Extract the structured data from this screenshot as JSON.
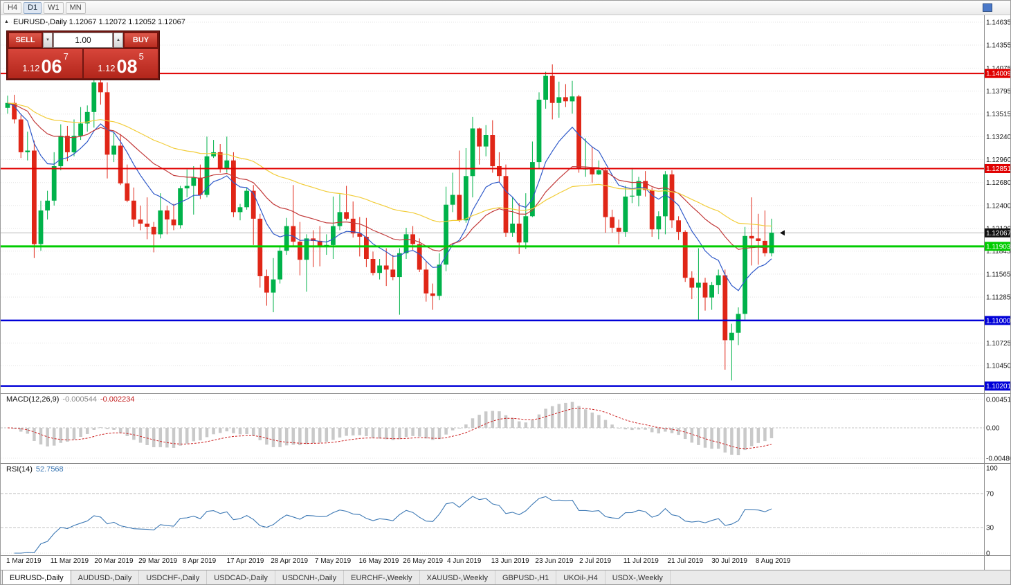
{
  "toolbar": {
    "timeframes": [
      {
        "label": "H4",
        "active": false
      },
      {
        "label": "D1",
        "active": true
      },
      {
        "label": "W1",
        "active": false
      },
      {
        "label": "MN",
        "active": false
      }
    ]
  },
  "chart": {
    "title": "EURUSD-,Daily  1.12067 1.12072 1.12052 1.12067"
  },
  "icons": {
    "collapse": "▲",
    "volume_down": "▼",
    "volume_up": "▲"
  },
  "trade_panel": {
    "sell_label": "SELL",
    "buy_label": "BUY",
    "volume": "1.00",
    "sell_price": {
      "base": "1.12",
      "big": "06",
      "sup": "7"
    },
    "buy_price": {
      "base": "1.12",
      "big": "08",
      "sup": "5"
    }
  },
  "indicators": {
    "macd": {
      "name": "MACD(12,26,9)",
      "value_main": "-0.000544",
      "value_signal": "-0.002234",
      "axis": [
        {
          "v": 0.004517,
          "label": "0.004517"
        },
        {
          "v": 0,
          "label": "0.00"
        },
        {
          "v": -0.004806,
          "label": "-0.004806"
        }
      ]
    },
    "rsi": {
      "name": "RSI(14)",
      "value": "52.7568",
      "axis": [
        {
          "v": 100,
          "label": "100"
        },
        {
          "v": 70,
          "label": "70"
        },
        {
          "v": 30,
          "label": "30"
        },
        {
          "v": 0,
          "label": "0"
        }
      ]
    }
  },
  "tabs": [
    {
      "label": "EURUSD-,Daily",
      "active": true
    },
    {
      "label": "AUDUSD-,Daily",
      "active": false
    },
    {
      "label": "USDCHF-,Daily",
      "active": false
    },
    {
      "label": "USDCAD-,Daily",
      "active": false
    },
    {
      "label": "USDCNH-,Daily",
      "active": false
    },
    {
      "label": "EURCHF-,Weekly",
      "active": false
    },
    {
      "label": "XAUUSD-,Weekly",
      "active": false
    },
    {
      "label": "GBPUSD-,H1",
      "active": false
    },
    {
      "label": "UKOil-,H4",
      "active": false
    },
    {
      "label": "USDX-,Weekly",
      "active": false
    }
  ],
  "chart_data": {
    "type": "candlestick",
    "symbol": "EURUSD-",
    "period": "Daily",
    "ylim": [
      1.10122,
      1.1466
    ],
    "price_ticks": [
      1.14635,
      1.14355,
      1.14075,
      1.13795,
      1.13515,
      1.1324,
      1.1296,
      1.1268,
      1.124,
      1.1212,
      1.11845,
      1.11565,
      1.11285,
      1.10725,
      1.1045
    ],
    "hlines": [
      {
        "price": 1.14009,
        "label": "1.14009",
        "color": "#e00000",
        "width": 2
      },
      {
        "price": 1.12851,
        "label": "1.12851",
        "color": "#e00000",
        "width": 2
      },
      {
        "price": 1.11903,
        "label": "1.11903",
        "color": "#00cc00",
        "width": 3
      },
      {
        "price": 1.11,
        "label": "1.11000",
        "color": "#0000d8",
        "width": 2.5
      },
      {
        "price": 1.10201,
        "label": "1.10201",
        "color": "#0000d8",
        "width": 2.5
      }
    ],
    "current_price": {
      "value": 1.12067,
      "label": "1.12067"
    },
    "date_labels": [
      "1 Mar 2019",
      "11 Mar 2019",
      "20 Mar 2019",
      "29 Mar 2019",
      "8 Apr 2019",
      "17 Apr 2019",
      "28 Apr 2019",
      "7 May 2019",
      "16 May 2019",
      "26 May 2019",
      "4 Jun 2019",
      "13 Jun 2019",
      "23 Jun 2019",
      "2 Jul 2019",
      "11 Jul 2019",
      "21 Jul 2019",
      "30 Jul 2019",
      "8 Aug 2019"
    ],
    "moving_averages": [
      {
        "period": 10,
        "color": "#2e59c9"
      },
      {
        "period": 25,
        "color": "#c23a3a"
      },
      {
        "period": 55,
        "color": "#f2cd3a"
      }
    ],
    "colors": {
      "up": "#00b24a",
      "down": "#e02617",
      "macd_hist": "#c9c9c9",
      "macd_signal": "#cc2020",
      "rsi_line": "#3c78b4",
      "grid": "#e4e4e4",
      "axis_text": "#1a1a1a",
      "current_label_bg": "#111111"
    },
    "candles": [
      [
        1.1359,
        1.1374,
        1.1352,
        1.1365
      ],
      [
        1.1365,
        1.1375,
        1.134,
        1.1345
      ],
      [
        1.1345,
        1.135,
        1.1298,
        1.1305
      ],
      [
        1.1305,
        1.133,
        1.1295,
        1.1307
      ],
      [
        1.1307,
        1.1319,
        1.1176,
        1.1193
      ],
      [
        1.1193,
        1.1246,
        1.1185,
        1.1234
      ],
      [
        1.1234,
        1.1258,
        1.1223,
        1.1246
      ],
      [
        1.1246,
        1.1305,
        1.124,
        1.1288
      ],
      [
        1.1288,
        1.1339,
        1.1283,
        1.1325
      ],
      [
        1.1325,
        1.1337,
        1.1294,
        1.1305
      ],
      [
        1.1305,
        1.1345,
        1.13,
        1.1325
      ],
      [
        1.1325,
        1.136,
        1.132,
        1.134
      ],
      [
        1.134,
        1.1362,
        1.133,
        1.1354
      ],
      [
        1.1354,
        1.1402,
        1.1335,
        1.139
      ],
      [
        1.139,
        1.1398,
        1.1363,
        1.1378
      ],
      [
        1.1378,
        1.139,
        1.1273,
        1.1302
      ],
      [
        1.1302,
        1.133,
        1.1293,
        1.1313
      ],
      [
        1.1313,
        1.1327,
        1.1265,
        1.1267
      ],
      [
        1.1267,
        1.129,
        1.1244,
        1.1246
      ],
      [
        1.1246,
        1.1262,
        1.1214,
        1.1223
      ],
      [
        1.1223,
        1.124,
        1.121,
        1.1218
      ],
      [
        1.1218,
        1.125,
        1.1199,
        1.1214
      ],
      [
        1.1214,
        1.122,
        1.1183,
        1.1205
      ],
      [
        1.1205,
        1.1255,
        1.12,
        1.1234
      ],
      [
        1.1234,
        1.124,
        1.1205,
        1.1223
      ],
      [
        1.1223,
        1.1242,
        1.121,
        1.1216
      ],
      [
        1.1216,
        1.1264,
        1.1212,
        1.1261
      ],
      [
        1.1261,
        1.1284,
        1.125,
        1.1264
      ],
      [
        1.1264,
        1.1288,
        1.1229,
        1.1274
      ],
      [
        1.1274,
        1.129,
        1.1248,
        1.1253
      ],
      [
        1.1253,
        1.1324,
        1.125,
        1.13
      ],
      [
        1.13,
        1.132,
        1.1298,
        1.1305
      ],
      [
        1.1305,
        1.1315,
        1.128,
        1.1285
      ],
      [
        1.1285,
        1.1324,
        1.128,
        1.1295
      ],
      [
        1.1295,
        1.1305,
        1.1226,
        1.1232
      ],
      [
        1.1232,
        1.1242,
        1.1222,
        1.1238
      ],
      [
        1.1238,
        1.1262,
        1.1235,
        1.1258
      ],
      [
        1.1258,
        1.1265,
        1.1192,
        1.1224
      ],
      [
        1.1224,
        1.123,
        1.114,
        1.1154
      ],
      [
        1.1154,
        1.1162,
        1.1118,
        1.1134
      ],
      [
        1.1134,
        1.1176,
        1.111,
        1.115
      ],
      [
        1.115,
        1.119,
        1.1145,
        1.1185
      ],
      [
        1.1185,
        1.1225,
        1.118,
        1.1215
      ],
      [
        1.1215,
        1.1265,
        1.119,
        1.1196
      ],
      [
        1.1196,
        1.122,
        1.1155,
        1.1174
      ],
      [
        1.1174,
        1.1205,
        1.1135,
        1.12
      ],
      [
        1.12,
        1.121,
        1.1165,
        1.1197
      ],
      [
        1.1197,
        1.1215,
        1.1166,
        1.119
      ],
      [
        1.119,
        1.1205,
        1.118,
        1.1192
      ],
      [
        1.1192,
        1.1251,
        1.1175,
        1.1215
      ],
      [
        1.1215,
        1.1254,
        1.121,
        1.1232
      ],
      [
        1.1232,
        1.1264,
        1.1222,
        1.1224
      ],
      [
        1.1224,
        1.1245,
        1.1201,
        1.1206
      ],
      [
        1.1206,
        1.1226,
        1.1178,
        1.1202
      ],
      [
        1.1202,
        1.1225,
        1.1165,
        1.1175
      ],
      [
        1.1175,
        1.1184,
        1.1155,
        1.1158
      ],
      [
        1.1158,
        1.1175,
        1.115,
        1.1167
      ],
      [
        1.1167,
        1.1188,
        1.1142,
        1.1162
      ],
      [
        1.1162,
        1.118,
        1.1149,
        1.1153
      ],
      [
        1.1153,
        1.1188,
        1.1107,
        1.1182
      ],
      [
        1.1182,
        1.1213,
        1.1175,
        1.1205
      ],
      [
        1.1205,
        1.1215,
        1.1186,
        1.1193
      ],
      [
        1.1193,
        1.12,
        1.1159,
        1.1162
      ],
      [
        1.1162,
        1.1172,
        1.1123,
        1.1133
      ],
      [
        1.1133,
        1.1145,
        1.1113,
        1.113
      ],
      [
        1.113,
        1.1182,
        1.1125,
        1.1168
      ],
      [
        1.1168,
        1.1263,
        1.116,
        1.1241
      ],
      [
        1.1241,
        1.128,
        1.1232,
        1.1253
      ],
      [
        1.1253,
        1.1307,
        1.122,
        1.1222
      ],
      [
        1.1222,
        1.131,
        1.1219,
        1.1276
      ],
      [
        1.1276,
        1.1348,
        1.125,
        1.1334
      ],
      [
        1.1334,
        1.1335,
        1.129,
        1.1312
      ],
      [
        1.1312,
        1.1338,
        1.13,
        1.1326
      ],
      [
        1.1326,
        1.1344,
        1.128,
        1.1288
      ],
      [
        1.1288,
        1.1305,
        1.1268,
        1.1276
      ],
      [
        1.1276,
        1.129,
        1.1202,
        1.1207
      ],
      [
        1.1207,
        1.125,
        1.1202,
        1.1218
      ],
      [
        1.1218,
        1.1243,
        1.1181,
        1.1195
      ],
      [
        1.1195,
        1.1255,
        1.1187,
        1.1227
      ],
      [
        1.1227,
        1.1318,
        1.1226,
        1.1293
      ],
      [
        1.1293,
        1.1378,
        1.1285,
        1.1369
      ],
      [
        1.1369,
        1.1403,
        1.1358,
        1.1398
      ],
      [
        1.1398,
        1.1412,
        1.1345,
        1.1365
      ],
      [
        1.1365,
        1.1391,
        1.1347,
        1.1372
      ],
      [
        1.1372,
        1.1388,
        1.136,
        1.1367
      ],
      [
        1.1367,
        1.1392,
        1.1352,
        1.1373
      ],
      [
        1.1373,
        1.1375,
        1.128,
        1.1285
      ],
      [
        1.1285,
        1.1322,
        1.1275,
        1.1285
      ],
      [
        1.1285,
        1.1312,
        1.1268,
        1.1278
      ],
      [
        1.1278,
        1.1295,
        1.1277,
        1.1283
      ],
      [
        1.1283,
        1.1287,
        1.1207,
        1.1226
      ],
      [
        1.1226,
        1.1235,
        1.1207,
        1.1213
      ],
      [
        1.1213,
        1.1223,
        1.1193,
        1.1208
      ],
      [
        1.1208,
        1.1264,
        1.1202,
        1.1251
      ],
      [
        1.1251,
        1.1286,
        1.1243,
        1.1252
      ],
      [
        1.1252,
        1.1275,
        1.1239,
        1.127
      ],
      [
        1.127,
        1.1282,
        1.1251,
        1.1259
      ],
      [
        1.1259,
        1.1262,
        1.1202,
        1.1211
      ],
      [
        1.1211,
        1.1233,
        1.1199,
        1.1227
      ],
      [
        1.1227,
        1.1282,
        1.1205,
        1.1278
      ],
      [
        1.1278,
        1.1283,
        1.1213,
        1.1222
      ],
      [
        1.1222,
        1.1227,
        1.1198,
        1.1208
      ],
      [
        1.1208,
        1.121,
        1.1147,
        1.1152
      ],
      [
        1.1152,
        1.116,
        1.1126,
        1.114
      ],
      [
        1.114,
        1.1188,
        1.1101,
        1.1146
      ],
      [
        1.1146,
        1.1152,
        1.1112,
        1.1128
      ],
      [
        1.1128,
        1.1147,
        1.1113,
        1.1143
      ],
      [
        1.1143,
        1.1162,
        1.1132,
        1.1155
      ],
      [
        1.1155,
        1.1162,
        1.104,
        1.1076
      ],
      [
        1.1076,
        1.1096,
        1.1027,
        1.1085
      ],
      [
        1.1085,
        1.1116,
        1.107,
        1.1108
      ],
      [
        1.1108,
        1.1214,
        1.1101,
        1.1203
      ],
      [
        1.1203,
        1.125,
        1.1167,
        1.12
      ],
      [
        1.12,
        1.123,
        1.1168,
        1.1197
      ],
      [
        1.1197,
        1.1234,
        1.1178,
        1.1182
      ],
      [
        1.1182,
        1.1224,
        1.1178,
        1.1207
      ]
    ]
  }
}
